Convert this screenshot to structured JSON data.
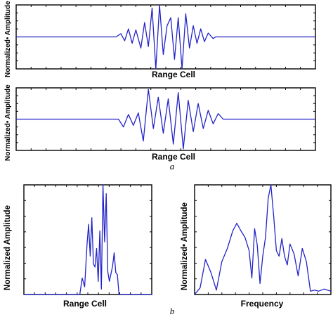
{
  "panel_labels": {
    "a": "a",
    "b": "b"
  },
  "chart_data": [
    {
      "type": "line",
      "xlabel": "Range Cell",
      "ylabel": "Normalized• Amplitude",
      "grid": false,
      "ylim": [
        -1,
        1
      ],
      "series": [
        {
          "x": [
            0,
            40,
            42,
            43.5,
            45,
            46.5,
            48,
            50,
            51.5,
            53,
            54.5,
            56,
            57.5,
            59,
            60.5,
            62,
            63.5,
            65,
            66.5,
            68,
            69.5,
            71,
            72.5,
            74,
            75.5,
            77,
            79,
            80,
            120
          ],
          "values": [
            0,
            0,
            0.1,
            -0.12,
            0.25,
            -0.2,
            0.22,
            -0.35,
            0.45,
            -0.3,
            0.9,
            -1.0,
            1.0,
            -0.55,
            0.35,
            0.6,
            -0.7,
            0.6,
            -1.0,
            0.72,
            -0.35,
            0.35,
            -0.2,
            0.25,
            -0.15,
            0.12,
            -0.05,
            0,
            0
          ]
        }
      ]
    },
    {
      "type": "line",
      "xlabel": "Range Cell",
      "ylabel": "Normalized• Amplitude",
      "grid": false,
      "ylim": [
        -1,
        1
      ],
      "series": [
        {
          "x": [
            0,
            41,
            43,
            45,
            47,
            49,
            51,
            53,
            55,
            57,
            59,
            61,
            63,
            65,
            67,
            69,
            71,
            73,
            75,
            77,
            79,
            81,
            83,
            120
          ],
          "values": [
            0,
            0,
            -0.25,
            0.15,
            -0.2,
            0.2,
            -0.7,
            0.95,
            -0.3,
            0.7,
            -0.45,
            0.65,
            -0.8,
            0.85,
            -0.95,
            0.6,
            -0.4,
            0.5,
            -0.3,
            0.28,
            -0.15,
            0.18,
            0,
            0
          ]
        }
      ]
    },
    {
      "type": "line",
      "xlabel": "Range Cell",
      "ylabel": "Normalized Amplitude",
      "grid": false,
      "ylim": [
        0,
        1
      ],
      "series": [
        {
          "x": [
            0,
            35,
            36.5,
            38,
            39.5,
            40.5,
            41.5,
            42.5,
            43.5,
            44.5,
            45.5,
            46.5,
            47.5,
            48.5,
            49.5,
            50.5,
            51.5,
            52.5,
            53.5,
            54.5,
            55.5,
            56.5,
            57.5,
            58.5,
            59.5,
            80
          ],
          "values": [
            0,
            0,
            0.15,
            0.07,
            0.46,
            0.64,
            0.35,
            0.7,
            0.28,
            0.25,
            0.42,
            0.12,
            0.58,
            0.05,
            1.0,
            0.48,
            0.92,
            0.21,
            0.12,
            0.19,
            0.26,
            0.38,
            0.2,
            0.18,
            0.0,
            0
          ]
        }
      ]
    },
    {
      "type": "line",
      "xlabel": "Frequency",
      "ylabel": "Normalized• Amplitude",
      "grid": false,
      "ylim": [
        0,
        1
      ],
      "series": [
        {
          "x": [
            0,
            4,
            8,
            12,
            16,
            20,
            24,
            28,
            31,
            34,
            37,
            40,
            42,
            44,
            46,
            48,
            50,
            52,
            54,
            56,
            58,
            60,
            62,
            64,
            66,
            68,
            70,
            73,
            76,
            79,
            82,
            85,
            88,
            91,
            95,
            100
          ],
          "values": [
            0,
            0.06,
            0.32,
            0.2,
            0.04,
            0.3,
            0.42,
            0.58,
            0.65,
            0.58,
            0.52,
            0.4,
            0.15,
            0.6,
            0.45,
            0.1,
            0.35,
            0.52,
            0.88,
            1.0,
            0.72,
            0.4,
            0.35,
            0.51,
            0.35,
            0.27,
            0.46,
            0.37,
            0.17,
            0.42,
            0.3,
            0.03,
            0.04,
            0.03,
            0.05,
            0.03
          ]
        }
      ]
    }
  ]
}
